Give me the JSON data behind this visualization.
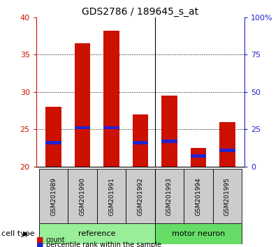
{
  "title": "GDS2786 / 189645_s_at",
  "samples": [
    "GSM201989",
    "GSM201990",
    "GSM201991",
    "GSM201992",
    "GSM201993",
    "GSM201994",
    "GSM201995"
  ],
  "count_values": [
    28.0,
    36.5,
    38.2,
    27.0,
    29.5,
    22.5,
    26.0
  ],
  "percentile_values": [
    23.0,
    25.0,
    25.0,
    23.0,
    23.2,
    21.2,
    22.0
  ],
  "baseline": 20,
  "ylim": [
    20,
    40
  ],
  "yticks_left": [
    20,
    25,
    30,
    35,
    40
  ],
  "yticks_right": [
    0,
    25,
    50,
    75,
    100
  ],
  "ytick_labels_right": [
    "0",
    "25",
    "50",
    "75",
    "100%"
  ],
  "groups": [
    {
      "label": "reference",
      "indices": [
        0,
        1,
        2,
        3
      ],
      "color": "#99EE99"
    },
    {
      "label": "motor neuron",
      "indices": [
        4,
        5,
        6
      ],
      "color": "#66DD66"
    }
  ],
  "bar_color": "#CC1100",
  "percentile_color": "#2222CC",
  "bar_width": 0.55,
  "left_axis_color": "#CC1100",
  "right_axis_color": "#2222CC",
  "sample_box_color": "#CCCCCC",
  "legend_items": [
    {
      "label": "count",
      "color": "#CC1100"
    },
    {
      "label": "percentile rank within the sample",
      "color": "#2222CC"
    }
  ],
  "figsize": [
    3.98,
    3.54
  ],
  "dpi": 100
}
